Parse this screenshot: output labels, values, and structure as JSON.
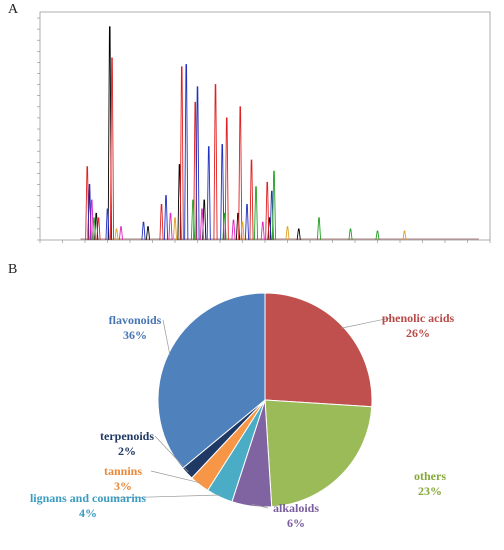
{
  "panels": {
    "a_label": "A",
    "b_label": "B"
  },
  "chart_data": [
    {
      "type": "line",
      "panel": "A",
      "xlim": [
        0,
        20
      ],
      "ylim": [
        0,
        1.0
      ],
      "grid": false,
      "series": [
        {
          "color": "#000000",
          "peaks": [
            [
              2.2,
              0.22
            ],
            [
              2.5,
              0.12
            ],
            [
              3.1,
              0.96
            ],
            [
              4.8,
              0.06
            ],
            [
              6.2,
              0.34
            ],
            [
              7.3,
              0.18
            ],
            [
              8.8,
              0.12
            ],
            [
              10.2,
              0.1
            ],
            [
              11.5,
              0.05
            ]
          ]
        },
        {
          "color": "#e02020",
          "peaks": [
            [
              2.1,
              0.33
            ],
            [
              2.6,
              0.1
            ],
            [
              3.2,
              0.82
            ],
            [
              5.4,
              0.16
            ],
            [
              6.3,
              0.78
            ],
            [
              6.9,
              0.62
            ],
            [
              7.8,
              0.7
            ],
            [
              8.3,
              0.55
            ],
            [
              8.9,
              0.6
            ],
            [
              9.4,
              0.36
            ],
            [
              10.1,
              0.26
            ]
          ]
        },
        {
          "color": "#2030c0",
          "peaks": [
            [
              2.2,
              0.25
            ],
            [
              3.0,
              0.14
            ],
            [
              4.6,
              0.08
            ],
            [
              5.6,
              0.2
            ],
            [
              6.5,
              0.79
            ],
            [
              7.0,
              0.69
            ],
            [
              7.5,
              0.42
            ],
            [
              8.1,
              0.43
            ],
            [
              9.2,
              0.16
            ],
            [
              10.3,
              0.22
            ]
          ]
        },
        {
          "color": "#20a020",
          "peaks": [
            [
              2.4,
              0.1
            ],
            [
              6.8,
              0.18
            ],
            [
              8.2,
              0.12
            ],
            [
              9.6,
              0.24
            ],
            [
              10.4,
              0.31
            ],
            [
              12.4,
              0.1
            ],
            [
              13.8,
              0.05
            ],
            [
              15.0,
              0.04
            ]
          ]
        },
        {
          "color": "#e020c0",
          "peaks": [
            [
              2.3,
              0.18
            ],
            [
              3.6,
              0.06
            ],
            [
              5.8,
              0.12
            ],
            [
              7.2,
              0.14
            ],
            [
              8.6,
              0.09
            ],
            [
              9.9,
              0.08
            ]
          ]
        },
        {
          "color": "#e0a020",
          "peaks": [
            [
              3.4,
              0.05
            ],
            [
              6.0,
              0.1
            ],
            [
              9.0,
              0.08
            ],
            [
              11.0,
              0.06
            ],
            [
              16.2,
              0.04
            ]
          ]
        }
      ]
    },
    {
      "type": "pie",
      "panel": "B",
      "slices": [
        {
          "label": "phenolic acids",
          "pct": "26%",
          "value": 26,
          "color": "#c0504d",
          "text_color": "#b84a47"
        },
        {
          "label": "others",
          "pct": "23%",
          "value": 23,
          "color": "#9bbb59",
          "text_color": "#86a83a"
        },
        {
          "label": "alkaloids",
          "pct": "6%",
          "value": 6,
          "color": "#8064a2",
          "text_color": "#7a5d9e"
        },
        {
          "label": "lignans and coumarins",
          "pct": "4%",
          "value": 4,
          "color": "#4bacc6",
          "text_color": "#3a9cc0"
        },
        {
          "label": "tannins",
          "pct": "3%",
          "value": 3,
          "color": "#f79646",
          "text_color": "#e8893a"
        },
        {
          "label": "terpenoids",
          "pct": "2%",
          "value": 2,
          "color": "#1f3864",
          "text_color": "#1f3864"
        },
        {
          "label": "flavonoids",
          "pct": "36%",
          "value": 36,
          "color": "#4f81bd",
          "text_color": "#4675b4"
        }
      ]
    }
  ]
}
